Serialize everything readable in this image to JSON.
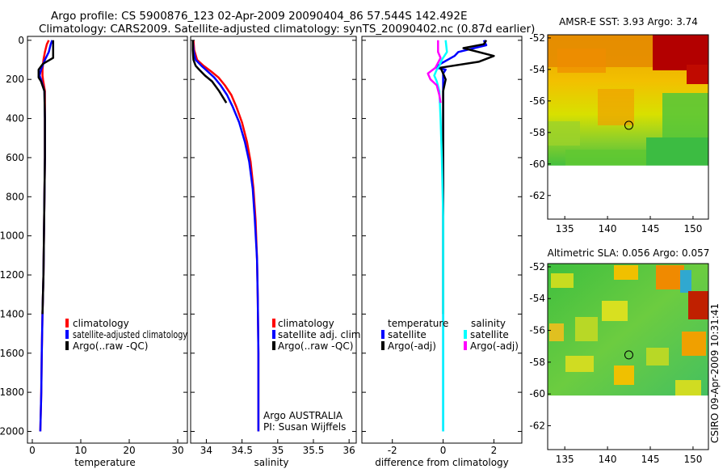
{
  "header": {
    "line1": "Argo profile: CS 5900876_123 02-Apr-2009 20090404_86 57.544S 142.492E",
    "line2": "Climatology: CARS2009. Satellite-adjusted climatology: synTS_20090402.nc (0.87d earlier)"
  },
  "colors": {
    "climatology": "#ff0000",
    "satellite": "#0000ff",
    "argo": "#000000",
    "sal_satellite": "#00ffff",
    "sal_argo": "#ff00ff"
  },
  "chart_data": [
    {
      "id": "temperature",
      "type": "line",
      "xlabel": "temperature",
      "xlim": [
        -1,
        32
      ],
      "xticks": [
        0,
        10,
        20,
        30
      ],
      "ylim": [
        2060,
        -20
      ],
      "yticks": [
        0,
        200,
        400,
        600,
        800,
        1000,
        1200,
        1400,
        1600,
        1800,
        2000
      ],
      "legend": [
        "climatology",
        "satellite-adjusted climatology",
        "Argo(..raw -QC)"
      ],
      "series": [
        {
          "name": "climatology",
          "key": "climatology",
          "x": [
            3.4,
            3.0,
            2.6,
            2.3,
            2.1,
            2.1,
            2.2,
            2.6,
            2.6,
            2.6,
            2.5,
            2.4,
            2.3,
            2.1,
            1.95,
            1.85,
            1.75,
            1.65
          ],
          "y": [
            0,
            20,
            60,
            100,
            150,
            180,
            200,
            260,
            400,
            600,
            800,
            1000,
            1200,
            1400,
            1600,
            1800,
            1900,
            2000
          ]
        },
        {
          "name": "satellite-adjusted climatology",
          "key": "satellite",
          "x": [
            4.1,
            3.8,
            3.4,
            2.6,
            1.8,
            1.5,
            1.8,
            2.5,
            2.6,
            2.6,
            2.5,
            2.4,
            2.3,
            2.1,
            1.95,
            1.85,
            1.75,
            1.65
          ],
          "y": [
            0,
            20,
            60,
            100,
            150,
            180,
            200,
            260,
            400,
            600,
            800,
            1000,
            1200,
            1400,
            1600,
            1800,
            1900,
            2000
          ]
        },
        {
          "name": "Argo(..raw -QC)",
          "key": "argo",
          "x": [
            4.3,
            4.3,
            4.3,
            2.2,
            1.3,
            1.3,
            1.8,
            2.5,
            2.6,
            2.6,
            2.5,
            2.4,
            2.3,
            2.1
          ],
          "y": [
            0,
            50,
            90,
            120,
            150,
            190,
            210,
            260,
            400,
            600,
            800,
            1000,
            1200,
            1400
          ]
        }
      ]
    },
    {
      "id": "salinity",
      "type": "line",
      "xlabel": "salinity",
      "xlim": [
        33.78,
        36.1
      ],
      "xticks": [
        34,
        34.5,
        35,
        35.5,
        36
      ],
      "xtick_labels": [
        "34",
        "34.5",
        "35",
        "35.5",
        "36"
      ],
      "ylim": [
        2060,
        -20
      ],
      "legend": [
        "climatology",
        "satellite adj. clim.",
        "Argo(..raw -QC)"
      ],
      "annotations": [
        "Argo AUSTRALIA",
        "PI: Susan Wijffels"
      ],
      "series": [
        {
          "name": "climatology",
          "key": "climatology",
          "x": [
            33.82,
            33.83,
            33.87,
            33.96,
            34.07,
            34.17,
            34.26,
            34.35,
            34.42,
            34.5,
            34.57,
            34.62,
            34.66,
            34.69,
            34.71,
            34.72,
            34.73,
            34.73,
            34.73
          ],
          "y": [
            0,
            50,
            100,
            130,
            160,
            190,
            230,
            280,
            340,
            420,
            520,
            620,
            760,
            920,
            1120,
            1320,
            1600,
            1800,
            2000
          ]
        },
        {
          "name": "satellite adj. clim.",
          "key": "satellite",
          "x": [
            33.81,
            33.82,
            33.85,
            33.93,
            34.02,
            34.11,
            34.2,
            34.29,
            34.37,
            34.46,
            34.54,
            34.6,
            34.65,
            34.68,
            34.71,
            34.72,
            34.73,
            34.73,
            34.73
          ],
          "y": [
            0,
            50,
            100,
            130,
            160,
            190,
            230,
            280,
            340,
            420,
            520,
            620,
            760,
            920,
            1120,
            1320,
            1600,
            1800,
            2000
          ]
        },
        {
          "name": "Argo(..raw -QC)",
          "key": "argo",
          "x": [
            33.81,
            33.81,
            33.82,
            33.85,
            33.9,
            33.98,
            34.08,
            34.18,
            34.28
          ],
          "y": [
            0,
            50,
            100,
            130,
            150,
            180,
            210,
            260,
            320
          ]
        }
      ]
    },
    {
      "id": "difference",
      "type": "line",
      "xlabel": "difference from climatology",
      "xlim": [
        -3.2,
        3.1
      ],
      "xticks": [
        -2,
        0,
        2
      ],
      "ylim": [
        2060,
        -20
      ],
      "legend_groups": [
        "temperature",
        "salinity"
      ],
      "legend": [
        "satellite",
        "Argo(-adj)",
        "satellite",
        "Argo(-adj)"
      ],
      "series": [
        {
          "name": "temperature satellite",
          "key": "satellite",
          "x": [
            1.6,
            1.7,
            0.6,
            0.45,
            -0.1,
            -0.3,
            0.1,
            0,
            0,
            0,
            0,
            0,
            0,
            0,
            0,
            0,
            0
          ],
          "y": [
            0,
            25,
            60,
            80,
            120,
            140,
            150,
            170,
            260,
            400,
            600,
            800,
            1000,
            1200,
            1400,
            1600,
            2000
          ]
        },
        {
          "name": "temperature Argo(-adj)",
          "key": "argo",
          "x": [
            1.7,
            1.6,
            0.8,
            2.0,
            1.4,
            -0.1,
            0,
            0.1,
            0,
            0,
            0,
            0
          ],
          "y": [
            0,
            20,
            40,
            80,
            110,
            140,
            170,
            200,
            260,
            600,
            1000,
            1400
          ]
        },
        {
          "name": "salinity satellite",
          "key": "sal_satellite",
          "x": [
            0.1,
            0.15,
            -0.05,
            -0.15,
            -0.25,
            -0.35,
            -0.25,
            -0.15,
            -0.1,
            -0.05,
            0,
            0,
            0
          ],
          "y": [
            0,
            60,
            100,
            130,
            150,
            180,
            210,
            260,
            400,
            600,
            900,
            1300,
            2000
          ]
        },
        {
          "name": "salinity Argo(-adj)",
          "key": "sal_argo",
          "x": [
            -0.2,
            -0.2,
            -0.1,
            -0.3,
            -0.6,
            -0.5,
            -0.25,
            -0.15,
            -0.1
          ],
          "y": [
            0,
            60,
            90,
            140,
            170,
            200,
            230,
            280,
            320
          ]
        }
      ]
    },
    {
      "id": "sst-map",
      "type": "heatmap",
      "title": "AMSR-E SST: 3.93 Argo: 3.74",
      "xlim": [
        133,
        151.8
      ],
      "ylim": [
        -63.5,
        -51.8
      ],
      "xticks": [
        135,
        140,
        145,
        150
      ],
      "yticks": [
        -52,
        -54,
        -56,
        -58,
        -60,
        -62
      ],
      "data_extent": [
        -60.1,
        -51.8
      ],
      "marker": {
        "lon": 142.492,
        "lat": -57.544
      }
    },
    {
      "id": "sla-map",
      "type": "heatmap",
      "title": "Altimetric SLA: 0.056 Argo: 0.057",
      "xlim": [
        133,
        151.8
      ],
      "ylim": [
        -63.5,
        -51.8
      ],
      "xticks": [
        135,
        140,
        145,
        150
      ],
      "yticks": [
        -52,
        -54,
        -56,
        -58,
        -60,
        -62
      ],
      "data_extent": [
        -60.1,
        -51.8
      ],
      "marker": {
        "lon": 142.492,
        "lat": -57.544
      }
    }
  ],
  "footer": {
    "stamp": "CSIRO 09-Apr-2009 10:31:41"
  }
}
